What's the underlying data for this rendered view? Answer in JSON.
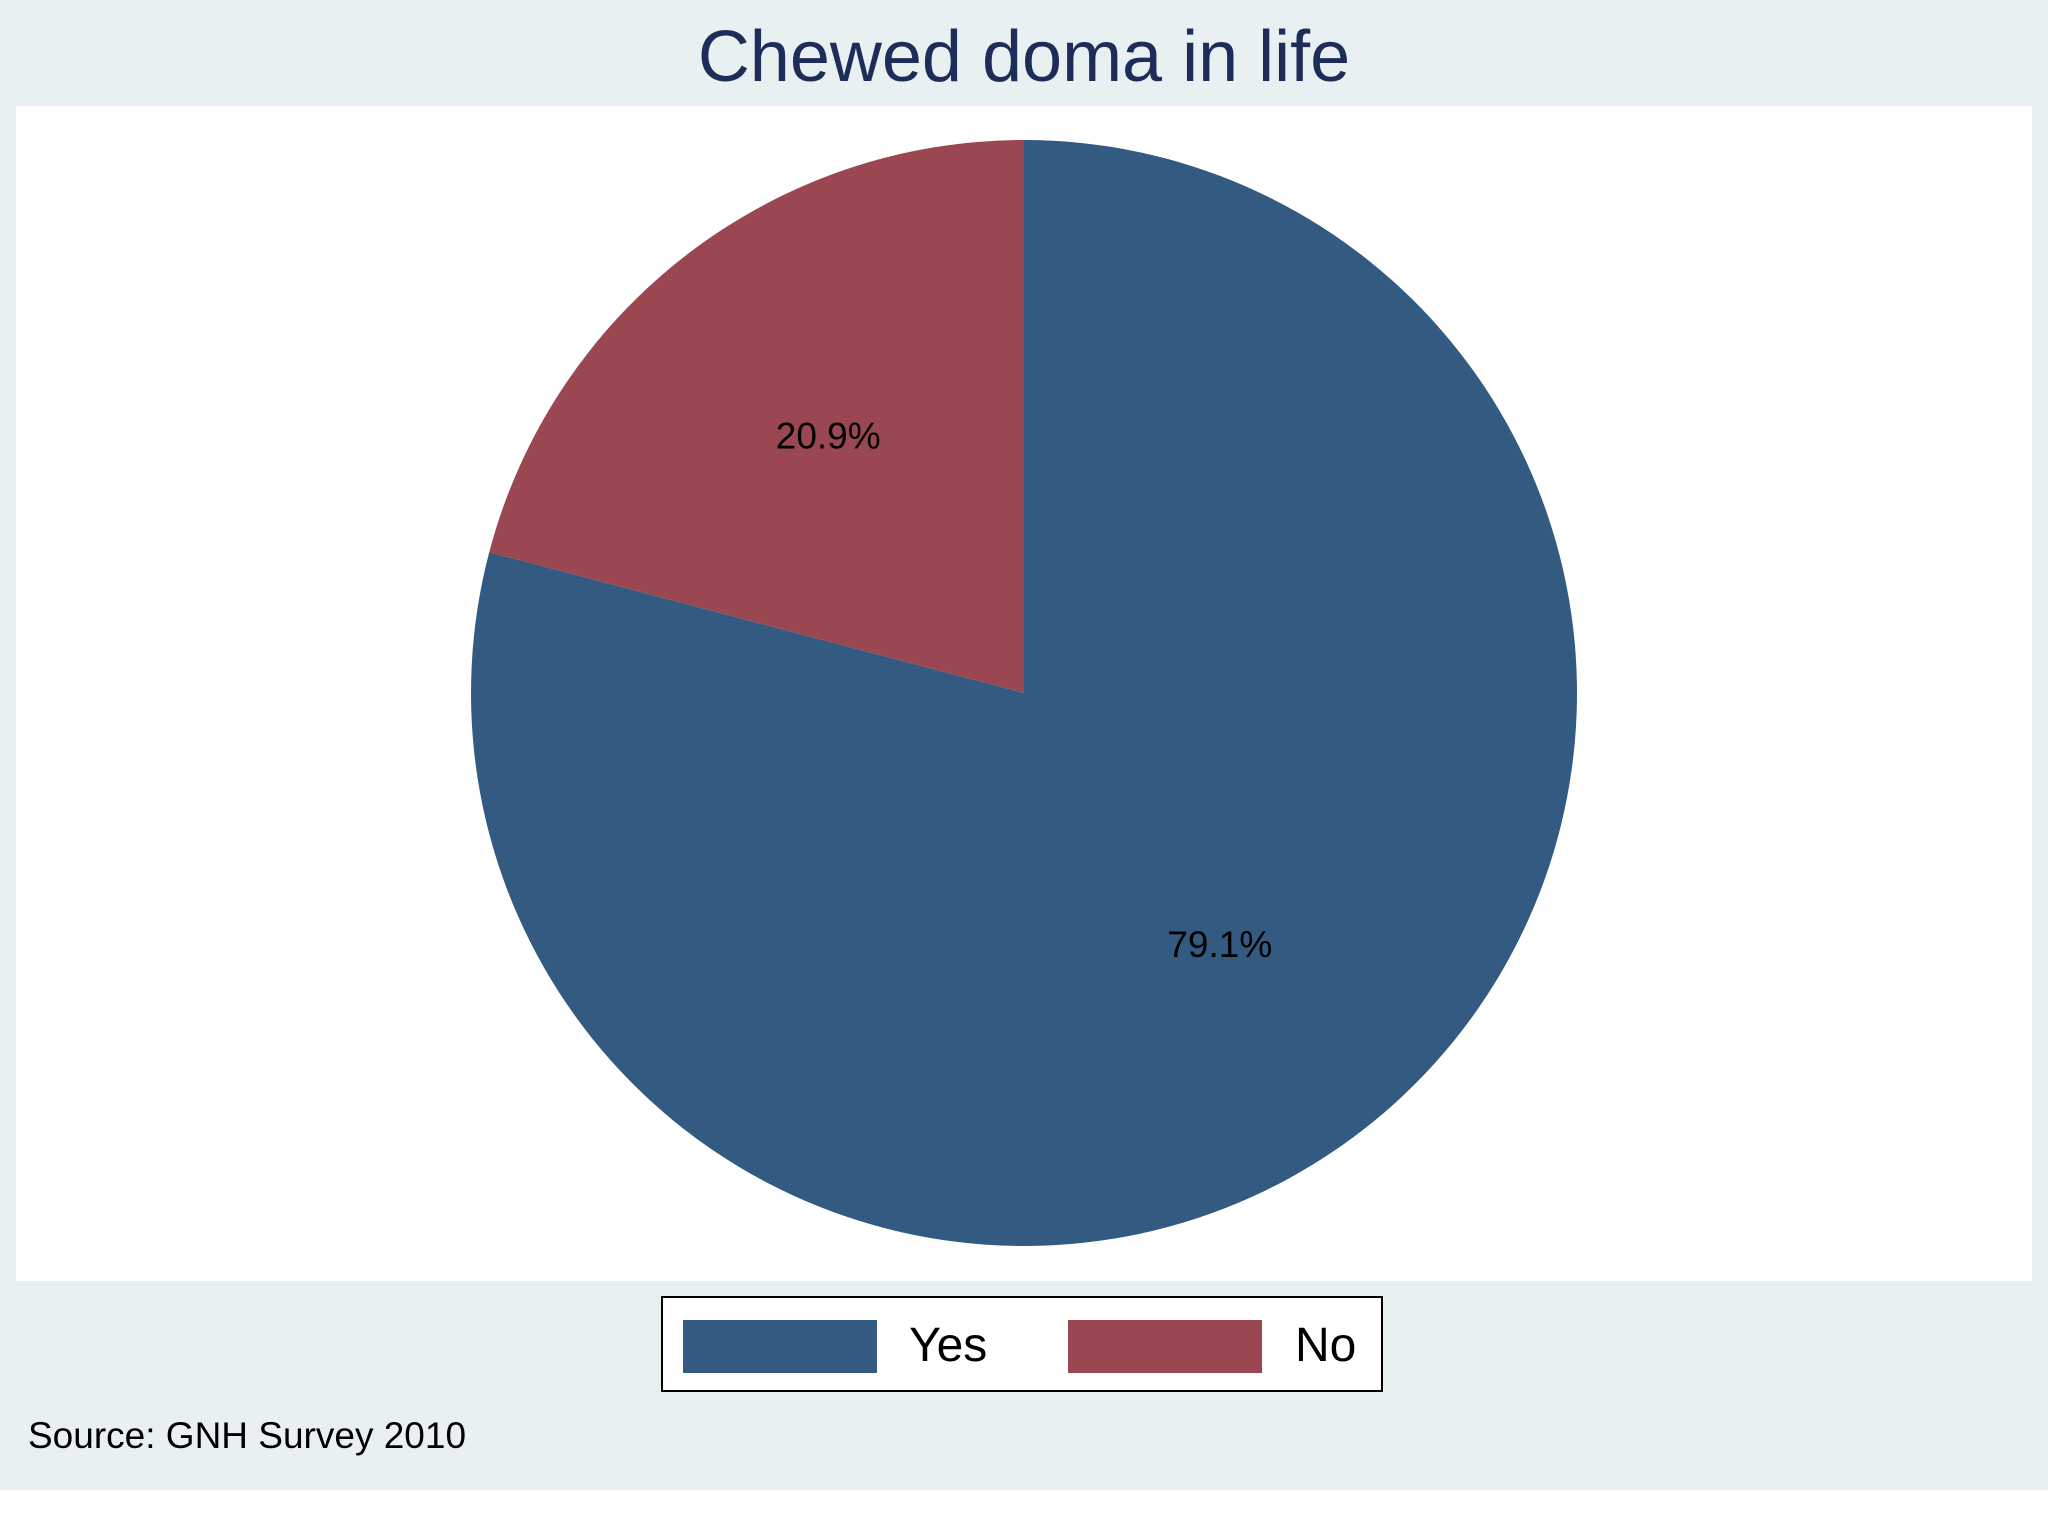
{
  "chart_data": {
    "type": "pie",
    "title": "Chewed doma in life",
    "slices": [
      {
        "label": "Yes",
        "value": 79.1,
        "value_label": "79.1%",
        "color": "#335a80"
      },
      {
        "label": "No",
        "value": 20.9,
        "value_label": "20.9%",
        "color": "#9a4751"
      }
    ],
    "legend": {
      "position": "bottom",
      "entries": [
        "Yes",
        "No"
      ]
    },
    "note": "Source: GNH Survey 2010"
  }
}
